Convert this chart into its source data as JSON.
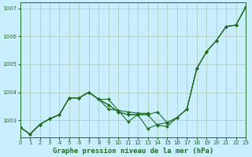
{
  "title": "Graphe pression niveau de la mer (hPa)",
  "bg_color": "#c8eeff",
  "line_color": "#1e6e1e",
  "grid_color": "#b0c8b0",
  "xlim": [
    0,
    23
  ],
  "ylim": [
    1002.4,
    1007.2
  ],
  "yticks": [
    1003,
    1004,
    1005,
    1006,
    1007
  ],
  "xticks": [
    0,
    1,
    2,
    3,
    4,
    5,
    6,
    7,
    8,
    9,
    10,
    11,
    12,
    13,
    14,
    15,
    16,
    17,
    18,
    19,
    20,
    21,
    22,
    23
  ],
  "series": [
    {
      "x": [
        0,
        1,
        2,
        3,
        4,
        5,
        6,
        7,
        8,
        9,
        10,
        11,
        12,
        13
      ],
      "y": [
        1002.75,
        1002.5,
        1002.85,
        1003.05,
        1003.2,
        1003.8,
        1003.8,
        1004.0,
        1003.75,
        1003.75,
        1003.35,
        1003.3,
        1003.25,
        1003.25
      ]
    },
    {
      "x": [
        0,
        1,
        2,
        3,
        4,
        5,
        6,
        7,
        8,
        9,
        10,
        11,
        12,
        13,
        14,
        15,
        16,
        17,
        18,
        19,
        20,
        21,
        22,
        23
      ],
      "y": [
        1002.75,
        1002.5,
        1002.85,
        1003.05,
        1003.2,
        1003.8,
        1003.8,
        1004.0,
        1003.75,
        1003.4,
        1003.35,
        1002.95,
        1003.2,
        1002.7,
        1002.85,
        1002.92,
        1003.1,
        1003.4,
        1004.85,
        1005.45,
        1005.85,
        1006.35,
        1006.4,
        1007.05
      ]
    },
    {
      "x": [
        0,
        1,
        2,
        3,
        4,
        5,
        6,
        7,
        8,
        9,
        10,
        11,
        12,
        13,
        14,
        15,
        16,
        17,
        18,
        19,
        20,
        21,
        22,
        23
      ],
      "y": [
        1002.75,
        1002.5,
        1002.85,
        1003.05,
        1003.2,
        1003.8,
        1003.8,
        1004.0,
        1003.75,
        1003.55,
        1003.3,
        1003.2,
        1003.2,
        1003.2,
        1003.3,
        1002.9,
        1003.1,
        1003.4,
        1004.85,
        1005.45,
        1005.85,
        1006.35,
        1006.4,
        1007.05
      ]
    },
    {
      "x": [
        0,
        1,
        2,
        3,
        4,
        5,
        6,
        7,
        8,
        9,
        10,
        11,
        12,
        13,
        14,
        15,
        16,
        17,
        18,
        19,
        20,
        21,
        22,
        23
      ],
      "y": [
        1002.75,
        1002.5,
        1002.85,
        1003.05,
        1003.2,
        1003.8,
        1003.8,
        1004.0,
        1003.75,
        1003.55,
        1003.3,
        1003.2,
        1003.2,
        1003.2,
        1002.82,
        1002.78,
        1003.1,
        1003.4,
        1004.85,
        1005.45,
        1005.85,
        1006.35,
        1006.4,
        1007.05
      ]
    }
  ]
}
